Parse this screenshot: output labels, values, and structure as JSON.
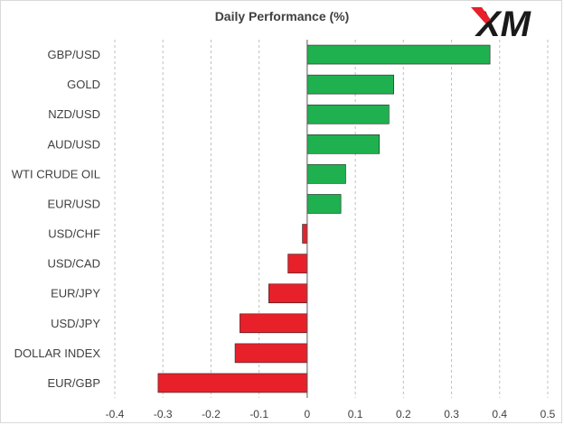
{
  "logo": {
    "text": "XM",
    "icon": "xm-logo"
  },
  "chart_data": {
    "type": "bar",
    "orientation": "horizontal",
    "title": "Daily Performance  (%)",
    "xlabel": "",
    "ylabel": "",
    "xlim": [
      -0.4,
      0.5
    ],
    "ticks": [
      "-0.4",
      "-0.3",
      "-0.2",
      "-0.1",
      "0",
      "0.1",
      "0.2",
      "0.3",
      "0.4",
      "0.5"
    ],
    "grid": "vertical dashed",
    "categories": [
      "GBP/USD",
      "GOLD",
      "NZD/USD",
      "AUD/USD",
      "WTI CRUDE OIL",
      "EUR/USD",
      "USD/CHF",
      "USD/CAD",
      "EUR/JPY",
      "USD/JPY",
      "DOLLAR INDEX",
      "EUR/GBP"
    ],
    "values": [
      0.38,
      0.18,
      0.17,
      0.15,
      0.08,
      0.07,
      -0.01,
      -0.04,
      -0.08,
      -0.14,
      -0.15,
      -0.31
    ],
    "colors": {
      "positive": "#1fb14f",
      "negative": "#e8202a",
      "grid": "#bfbfbf",
      "axis": "#595959"
    }
  }
}
